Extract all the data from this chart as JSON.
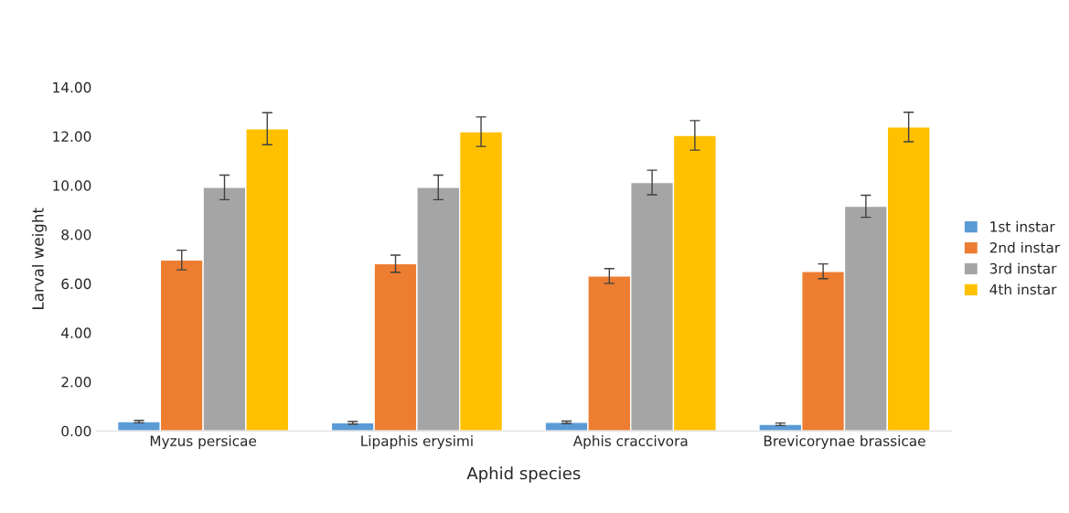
{
  "chart_data": {
    "type": "bar",
    "xlabel": "Aphid species",
    "ylabel": "Larval weight",
    "categories": [
      "Myzus persicae",
      "Lipaphis erysimi",
      "Aphis craccivora",
      "Brevicorynae brassicae"
    ],
    "series": [
      {
        "name": "1st instar",
        "color": "#5b9bd5",
        "values": [
          0.38,
          0.33,
          0.35,
          0.27
        ],
        "errors": [
          0.05,
          0.05,
          0.05,
          0.05
        ]
      },
      {
        "name": "2nd instar",
        "color": "#ed7d31",
        "values": [
          6.96,
          6.81,
          6.31,
          6.5
        ],
        "errors": [
          0.4,
          0.35,
          0.3,
          0.3
        ]
      },
      {
        "name": "3rd instar",
        "color": "#a5a5a5",
        "values": [
          9.92,
          9.92,
          10.12,
          9.15
        ],
        "errors": [
          0.5,
          0.5,
          0.5,
          0.45
        ]
      },
      {
        "name": "4th instar",
        "color": "#ffc000",
        "values": [
          12.31,
          12.19,
          12.04,
          12.38
        ],
        "errors": [
          0.65,
          0.6,
          0.6,
          0.6
        ]
      }
    ],
    "ylim": [
      0,
      14
    ],
    "yticks": [
      {
        "value": 0,
        "label": "0.00"
      },
      {
        "value": 2,
        "label": "2.00"
      },
      {
        "value": 4,
        "label": "4.00"
      },
      {
        "value": 6,
        "label": "6.00"
      },
      {
        "value": 8,
        "label": "8.00"
      },
      {
        "value": 10,
        "label": "10.00"
      },
      {
        "value": 12,
        "label": "12.00"
      },
      {
        "value": 14,
        "label": "14.00"
      }
    ],
    "legend": "right",
    "grid": false
  }
}
